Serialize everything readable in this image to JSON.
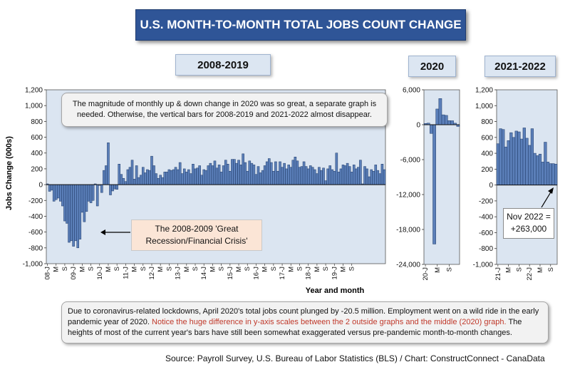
{
  "title": "U.S. MONTH-TO-MONTH TOTAL JOBS COUNT CHANGE",
  "note_top": "The magnitude of monthly up & down change in 2020 was so great, a separate graph is needed. Otherwise, the vertical bars for 2008-2019 and 2021-2022 almost disappear.",
  "callout_recession": "The 2008-2009 'Great Recession/Financial Crisis'",
  "callout_nov_line1": "Nov 2022 =",
  "callout_nov_line2": "+263,000",
  "bottom_note": {
    "part1": "Due to coronavirus-related lockdowns, April 2020's total jobs count plunged by -20.5 million. Employment went on a wild ride in the early pandemic year of 2020. ",
    "part2_red": "Notice the huge difference in y-axis scales between the 2 outside graphs and the middle (2020) graph.",
    "part3": "The heights of most of the current year's bars have still been somewhat exaggerated versus pre-pandemic month-to-month changes."
  },
  "source": "Source: Payroll Survey, U.S. Bureau of Labor Statistics (BLS) / Chart: ConstructConnect - CanaData",
  "colors": {
    "bar": "#5b7fb9",
    "bar_stroke": "#1f3a66",
    "title_bg": "#2f5597",
    "plot_bg": "#dbe5f1"
  },
  "chart_data": [
    {
      "type": "bar",
      "title": "2008-2019",
      "ylabel": "Jobs Change (000s)",
      "xlabel": "Year and month",
      "ylim": [
        -1000,
        1200
      ],
      "yticks": [
        "1,200",
        "1,000",
        "800",
        "600",
        "400",
        "200",
        "0",
        "-200",
        "-400",
        "-600",
        "-800",
        "-1,000"
      ],
      "tick_labels": [
        "08-J",
        "M",
        "S",
        "09-J",
        "M",
        "S",
        "10-J",
        "M",
        "S",
        "11-J",
        "M",
        "S",
        "12-J",
        "M",
        "S",
        "13-J",
        "M",
        "S",
        "14-J",
        "M",
        "S",
        "15-J",
        "M",
        "S",
        "16-J",
        "M",
        "S",
        "17-J",
        "M",
        "S",
        "18-J",
        "M",
        "S",
        "19-J",
        "M",
        "S"
      ],
      "start": "2008-01",
      "values": [
        10,
        -85,
        -70,
        -210,
        -190,
        -170,
        -210,
        -270,
        -460,
        -490,
        -730,
        -710,
        -780,
        -710,
        -800,
        -690,
        -350,
        -470,
        -340,
        -210,
        -230,
        -200,
        10,
        -270,
        -10,
        -100,
        180,
        240,
        530,
        -130,
        -80,
        -55,
        -60,
        260,
        130,
        80,
        40,
        190,
        220,
        310,
        70,
        240,
        90,
        120,
        220,
        150,
        190,
        180,
        360,
        240,
        140,
        80,
        120,
        90,
        160,
        160,
        190,
        180,
        190,
        220,
        190,
        280,
        140,
        200,
        160,
        190,
        140,
        260,
        200,
        210,
        240,
        120,
        190,
        180,
        240,
        270,
        240,
        300,
        210,
        250,
        160,
        240,
        310,
        260,
        170,
        320,
        320,
        270,
        310,
        250,
        390,
        280,
        170,
        300,
        270,
        250,
        130,
        230,
        150,
        180,
        240,
        290,
        330,
        280,
        170,
        290,
        170,
        290,
        220,
        270,
        200,
        250,
        220,
        310,
        350,
        300,
        220,
        230,
        290,
        230,
        200,
        240,
        220,
        190,
        140,
        220,
        180,
        210,
        50,
        200,
        240,
        190,
        170,
        400,
        160,
        200,
        250,
        240,
        270,
        230,
        160,
        250,
        200,
        220,
        310,
        10,
        230,
        200,
        100,
        190,
        170,
        250,
        180,
        140,
        260,
        190
      ]
    },
    {
      "type": "bar",
      "title": "2020",
      "ylim": [
        -24000,
        6000
      ],
      "yticks": [
        "6,000",
        "0",
        "-6,000",
        "-12,000",
        "-18,000",
        "-24,000"
      ],
      "tick_labels": [
        "20-J",
        "M",
        "S"
      ],
      "values": [
        210,
        270,
        -1500,
        -20500,
        2700,
        4500,
        1700,
        1600,
        700,
        680,
        260,
        -300
      ]
    },
    {
      "type": "bar",
      "title": "2021-2022",
      "ylim": [
        -1000,
        1200
      ],
      "yticks": [
        "1,200",
        "1,000",
        "800",
        "600",
        "400",
        "200",
        "0",
        "-200",
        "-400",
        "-600",
        "-800",
        "-1,000"
      ],
      "tick_labels": [
        "21-J",
        "M",
        "S",
        "22-J",
        "M",
        "S"
      ],
      "values": [
        520,
        710,
        700,
        480,
        560,
        660,
        600,
        680,
        670,
        580,
        720,
        590,
        500,
        710,
        400,
        370,
        390,
        290,
        540,
        290,
        270,
        270,
        263
      ]
    }
  ]
}
